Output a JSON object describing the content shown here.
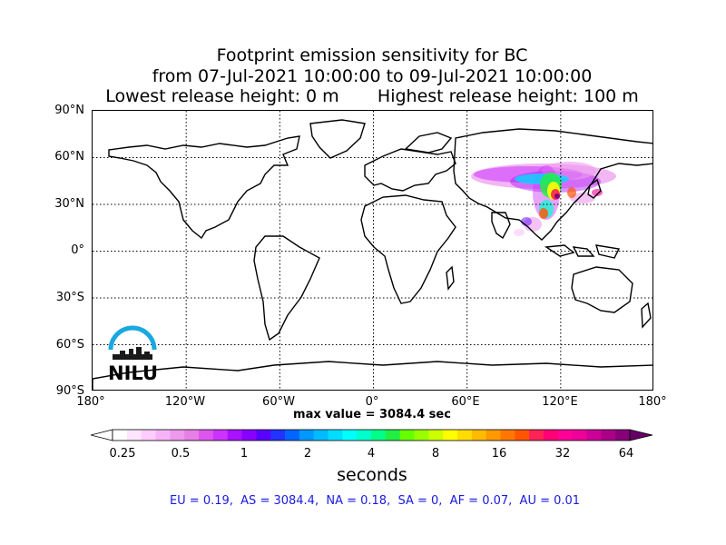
{
  "title": {
    "line1": "Footprint emission sensitivity for BC",
    "line2": "from 07-Jul-2021 10:00:00 to 09-Jul-2021 10:00:00",
    "line3": "Lowest release height: 0 m       Highest release height: 100 m"
  },
  "map": {
    "projection": "cylindrical",
    "lat_range": [
      -90,
      90
    ],
    "lon_range": [
      -180,
      180
    ],
    "grid": "dotted",
    "lat_ticks": [
      "90°N",
      "60°N",
      "30°N",
      "0°",
      "30°S",
      "60°S",
      "90°S"
    ],
    "lon_ticks": [
      "180°",
      "120°W",
      "60°W",
      "0°",
      "60°E",
      "120°E",
      "180°"
    ],
    "lat_tick_values": [
      90,
      60,
      30,
      0,
      -30,
      -60,
      -90
    ],
    "lon_tick_values": [
      -180,
      -120,
      -60,
      0,
      60,
      120,
      180
    ],
    "plume_region": "East Asia / Siberia"
  },
  "max_value": "max value = 3084.4 sec",
  "colorbar": {
    "ticks": [
      "0.25",
      "0.5",
      "1",
      "2",
      "4",
      "8",
      "16",
      "32",
      "64"
    ],
    "tick_values": [
      0.25,
      0.5,
      1,
      2,
      4,
      8,
      16,
      32,
      64
    ],
    "units": "seconds",
    "colors": [
      "#ffffff",
      "#ffe6ff",
      "#ffccff",
      "#f7b3f7",
      "#ee99ee",
      "#e680e6",
      "#dd55ee",
      "#cc33ff",
      "#aa11ff",
      "#8800ff",
      "#5a00ff",
      "#2233ff",
      "#0066ff",
      "#0099ff",
      "#00bbff",
      "#00ddff",
      "#00ffff",
      "#00ffcc",
      "#00ff88",
      "#22ee44",
      "#66ff00",
      "#99ff00",
      "#ccff00",
      "#ffff00",
      "#ffdd00",
      "#ffbb00",
      "#ff9900",
      "#ff7700",
      "#ff5500",
      "#ff2255",
      "#ff0077",
      "#ff0099",
      "#ee0099",
      "#cc0099",
      "#aa0088",
      "#880077"
    ]
  },
  "logo": {
    "text": "NILU"
  },
  "summary": "EU = 0.19,  AS = 3084.4,  NA = 0.18,  SA = 0,  AF = 0.07,  AU = 0.01"
}
